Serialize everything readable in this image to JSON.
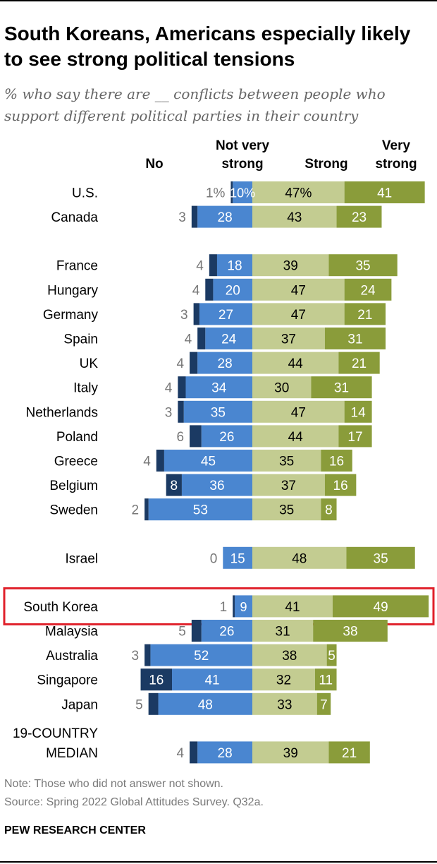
{
  "title": "South Koreans, Americans especially likely to see strong political tensions",
  "subtitle": "% who say there are __ conflicts between people who support different political parties in their country",
  "note": "Note: Those who did not answer not shown.",
  "source": "Source: Spring 2022 Global Attitudes Survey. Q32a.",
  "credit": "PEW RESEARCH CENTER",
  "colors": {
    "no": "#1b3a63",
    "not_very_strong": "#4a86d0",
    "strong": "#c3cc91",
    "very_strong": "#8a9c3a",
    "highlight": "#e0202a"
  },
  "chart_data": {
    "type": "bar",
    "orientation": "horizontal",
    "stacked": "diverging",
    "highlighted_category": "South Korea",
    "series": [
      {
        "key": "no",
        "name": "No",
        "side": "negative"
      },
      {
        "key": "not_very_strong",
        "name": "Not very strong",
        "side": "negative"
      },
      {
        "key": "strong",
        "name": "Strong",
        "side": "positive"
      },
      {
        "key": "very_strong",
        "name": "Very strong",
        "side": "positive"
      }
    ],
    "rows": [
      {
        "label": "U.S.",
        "no": 1,
        "not_very_strong": 10,
        "strong": 47,
        "very_strong": 41,
        "labels": {
          "no": "1%",
          "not_very_strong": "10%",
          "strong": "47%",
          "very_strong": "41"
        }
      },
      {
        "label": "Canada",
        "no": 3,
        "not_very_strong": 28,
        "strong": 43,
        "very_strong": 23
      },
      {
        "label": "France",
        "no": 4,
        "not_very_strong": 18,
        "strong": 39,
        "very_strong": 35,
        "group_break": true
      },
      {
        "label": "Hungary",
        "no": 4,
        "not_very_strong": 20,
        "strong": 47,
        "very_strong": 24
      },
      {
        "label": "Germany",
        "no": 3,
        "not_very_strong": 27,
        "strong": 47,
        "very_strong": 21
      },
      {
        "label": "Spain",
        "no": 4,
        "not_very_strong": 24,
        "strong": 37,
        "very_strong": 31
      },
      {
        "label": "UK",
        "no": 4,
        "not_very_strong": 28,
        "strong": 44,
        "very_strong": 21
      },
      {
        "label": "Italy",
        "no": 4,
        "not_very_strong": 34,
        "strong": 30,
        "very_strong": 31
      },
      {
        "label": "Netherlands",
        "no": 3,
        "not_very_strong": 35,
        "strong": 47,
        "very_strong": 14
      },
      {
        "label": "Poland",
        "no": 6,
        "not_very_strong": 26,
        "strong": 44,
        "very_strong": 17
      },
      {
        "label": "Greece",
        "no": 4,
        "not_very_strong": 45,
        "strong": 35,
        "very_strong": 16
      },
      {
        "label": "Belgium",
        "no": 8,
        "not_very_strong": 36,
        "strong": 37,
        "very_strong": 16
      },
      {
        "label": "Sweden",
        "no": 2,
        "not_very_strong": 53,
        "strong": 35,
        "very_strong": 8
      },
      {
        "label": "Israel",
        "no": 0,
        "not_very_strong": 15,
        "strong": 48,
        "very_strong": 35,
        "group_break": true
      },
      {
        "label": "South Korea",
        "no": 1,
        "not_very_strong": 9,
        "strong": 41,
        "very_strong": 49,
        "group_break": true
      },
      {
        "label": "Malaysia",
        "no": 5,
        "not_very_strong": 26,
        "strong": 31,
        "very_strong": 38
      },
      {
        "label": "Australia",
        "no": 3,
        "not_very_strong": 52,
        "strong": 38,
        "very_strong": 5
      },
      {
        "label": "Singapore",
        "no": 16,
        "not_very_strong": 41,
        "strong": 32,
        "very_strong": 11
      },
      {
        "label": "Japan",
        "no": 5,
        "not_very_strong": 48,
        "strong": 33,
        "very_strong": 7
      },
      {
        "label": [
          "19-COUNTRY",
          "MEDIAN"
        ],
        "no": 4,
        "not_very_strong": 28,
        "strong": 39,
        "very_strong": 21,
        "group_break": true,
        "median": true
      }
    ]
  }
}
